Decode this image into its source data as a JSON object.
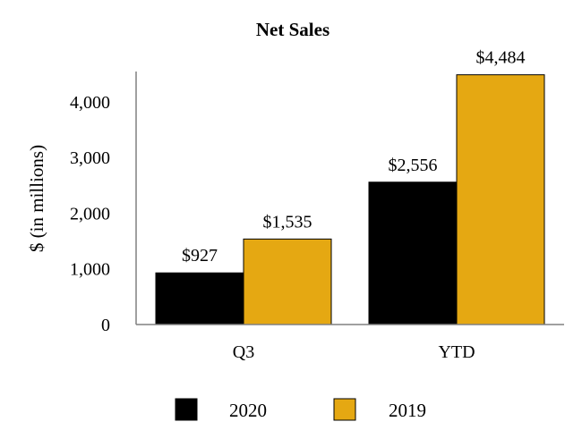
{
  "chart_data": {
    "type": "bar",
    "title": "Net Sales",
    "xlabel": "",
    "ylabel": "$ (in millions)",
    "categories": [
      "Q3",
      "YTD"
    ],
    "series": [
      {
        "name": "2020",
        "values": [
          927,
          2556
        ],
        "labels": [
          "$927",
          "$2,556"
        ],
        "color": "#000000"
      },
      {
        "name": "2019",
        "values": [
          1535,
          4484
        ],
        "labels": [
          "$1,535",
          "$4,484"
        ],
        "color": "#E5A812"
      }
    ],
    "ylim": [
      0,
      4500
    ],
    "yticks": [
      0,
      1000,
      2000,
      3000,
      4000
    ],
    "ytick_labels": [
      "0",
      "1,000",
      "2,000",
      "3,000",
      "4,000"
    ],
    "grid": false,
    "legend_position": "bottom"
  }
}
